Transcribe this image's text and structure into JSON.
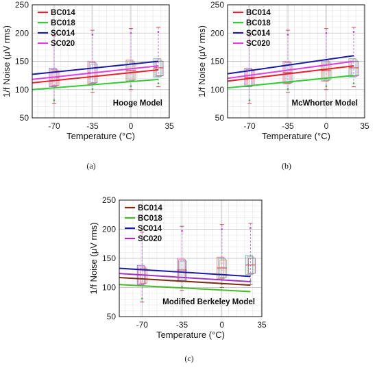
{
  "figure": {
    "captions": [
      "(a)",
      "(b)",
      "(c)"
    ]
  },
  "chart_data": [
    {
      "type": "line",
      "annotation": "Hooge Model",
      "xlabel": "Temperature (°C)",
      "ylabel": "1/f Noise (μV rms)",
      "xlim": [
        -90,
        35
      ],
      "ylim": [
        50,
        250
      ],
      "xticks": [
        -70,
        -35,
        0,
        35
      ],
      "yticks": [
        50,
        100,
        150,
        200,
        250
      ],
      "grid": true,
      "legend_position": "top-left",
      "series": [
        {
          "name": "BC014",
          "color": "#e8202a",
          "x": [
            -90,
            25
          ],
          "y": [
            112,
            135
          ]
        },
        {
          "name": "BC018",
          "color": "#33cc33",
          "x": [
            -90,
            25
          ],
          "y": [
            100,
            118
          ]
        },
        {
          "name": "SC014",
          "color": "#1a1aa6",
          "x": [
            -90,
            25
          ],
          "y": [
            127,
            150
          ]
        },
        {
          "name": "SC020",
          "color": "#e040e0",
          "x": [
            -90,
            25
          ],
          "y": [
            118,
            142
          ]
        }
      ],
      "boxes": [
        {
          "x": -70,
          "q1": 105,
          "q3": 138,
          "low": 75,
          "high": 195
        },
        {
          "x": -35,
          "q1": 110,
          "q3": 150,
          "low": 95,
          "high": 205
        },
        {
          "x": 0,
          "q1": 115,
          "q3": 152,
          "low": 100,
          "high": 208
        },
        {
          "x": 25,
          "q1": 122,
          "q3": 155,
          "low": 105,
          "high": 210
        }
      ]
    },
    {
      "type": "line",
      "annotation": "McWhorter Model",
      "xlabel": "Temperature (°C)",
      "ylabel": "1/f Noise (μV rms)",
      "xlim": [
        -90,
        35
      ],
      "ylim": [
        50,
        250
      ],
      "xticks": [
        -70,
        -35,
        0,
        35
      ],
      "yticks": [
        50,
        100,
        150,
        200,
        250
      ],
      "grid": true,
      "legend_position": "top-left",
      "series": [
        {
          "name": "BC014",
          "color": "#e8202a",
          "x": [
            -90,
            25
          ],
          "y": [
            115,
            142
          ]
        },
        {
          "name": "BC018",
          "color": "#33cc33",
          "x": [
            -90,
            25
          ],
          "y": [
            103,
            125
          ]
        },
        {
          "name": "SC014",
          "color": "#1a1aa6",
          "x": [
            -90,
            25
          ],
          "y": [
            128,
            160
          ]
        },
        {
          "name": "SC020",
          "color": "#e040e0",
          "x": [
            -90,
            25
          ],
          "y": [
            120,
            150
          ]
        }
      ],
      "boxes": [
        {
          "x": -70,
          "q1": 105,
          "q3": 138,
          "low": 75,
          "high": 195
        },
        {
          "x": -35,
          "q1": 110,
          "q3": 150,
          "low": 95,
          "high": 205
        },
        {
          "x": 0,
          "q1": 115,
          "q3": 152,
          "low": 100,
          "high": 208
        },
        {
          "x": 25,
          "q1": 122,
          "q3": 155,
          "low": 105,
          "high": 210
        }
      ]
    },
    {
      "type": "line",
      "annotation": "Modified Berkeley Model",
      "xlabel": "Temperature (°C)",
      "ylabel": "1/f Noise (μV rms)",
      "xlim": [
        -90,
        35
      ],
      "ylim": [
        50,
        250
      ],
      "xticks": [
        -70,
        -35,
        0,
        35
      ],
      "yticks": [
        50,
        100,
        150,
        200,
        250
      ],
      "grid": true,
      "legend_position": "top-left",
      "series": [
        {
          "name": "BC014",
          "color": "#7a2a10",
          "x": [
            -90,
            25
          ],
          "y": [
            117,
            104
          ]
        },
        {
          "name": "BC018",
          "color": "#44bb22",
          "x": [
            -90,
            25
          ],
          "y": [
            105,
            93
          ]
        },
        {
          "name": "SC014",
          "color": "#1a1aa6",
          "x": [
            -90,
            25
          ],
          "y": [
            133,
            119
          ]
        },
        {
          "name": "SC020",
          "color": "#a030c8",
          "x": [
            -90,
            25
          ],
          "y": [
            124,
            110
          ]
        }
      ],
      "boxes": [
        {
          "x": -70,
          "q1": 105,
          "q3": 138,
          "low": 75,
          "high": 195
        },
        {
          "x": -35,
          "q1": 110,
          "q3": 150,
          "low": 95,
          "high": 205
        },
        {
          "x": 0,
          "q1": 115,
          "q3": 152,
          "low": 100,
          "high": 208
        },
        {
          "x": 25,
          "q1": 122,
          "q3": 155,
          "low": 105,
          "high": 210
        }
      ]
    }
  ]
}
